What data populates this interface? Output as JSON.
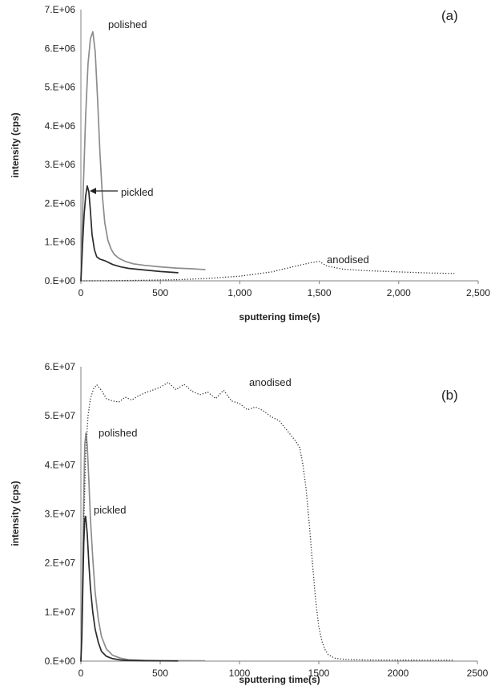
{
  "chart_data": [
    {
      "type": "line",
      "panel_label": "(a)",
      "xlabel": "sputtering time(s)",
      "ylabel": "intensity (cps)",
      "xlim": [
        0,
        2500
      ],
      "ylim": [
        0,
        7000000
      ],
      "x_ticks": [
        0,
        500,
        1000,
        1500,
        2000,
        2500
      ],
      "x_tick_labels": [
        "0",
        "500",
        "1,000",
        "1,500",
        "2,000",
        "2,500"
      ],
      "y_ticks": [
        0,
        1000000,
        2000000,
        3000000,
        4000000,
        5000000,
        6000000,
        7000000
      ],
      "y_tick_labels": [
        "0.E+00",
        "1.E+06",
        "2.E+06",
        "3.E+06",
        "4.E+06",
        "5.E+06",
        "6.E+06",
        "7.E+06"
      ],
      "grid": false,
      "series": [
        {
          "name": "polished",
          "color": "#8c8c8c",
          "style": "solid",
          "x": [
            0,
            15,
            30,
            45,
            60,
            75,
            90,
            105,
            120,
            135,
            150,
            170,
            190,
            210,
            240,
            280,
            330,
            400,
            500,
            600,
            700,
            780
          ],
          "y": [
            0,
            2400000,
            4300000,
            5600000,
            6250000,
            6430000,
            5900000,
            4700000,
            3300000,
            2200000,
            1500000,
            1050000,
            820000,
            680000,
            580000,
            500000,
            440000,
            400000,
            360000,
            330000,
            310000,
            290000
          ]
        },
        {
          "name": "pickled",
          "color": "#2b2b2b",
          "style": "solid",
          "x": [
            0,
            10,
            20,
            30,
            40,
            50,
            60,
            70,
            85,
            100,
            120,
            150,
            200,
            250,
            300,
            400,
            500,
            610
          ],
          "y": [
            0,
            900000,
            1700000,
            2200000,
            2450000,
            2300000,
            1800000,
            1200000,
            800000,
            620000,
            560000,
            520000,
            420000,
            360000,
            320000,
            280000,
            240000,
            210000
          ]
        },
        {
          "name": "anodised",
          "color": "#2b2b2b",
          "style": "dotted",
          "x": [
            0,
            200,
            400,
            600,
            800,
            1000,
            1200,
            1350,
            1450,
            1500,
            1550,
            1650,
            1800,
            2000,
            2200,
            2350
          ],
          "y": [
            0,
            5000,
            15000,
            30000,
            60000,
            120000,
            230000,
            380000,
            470000,
            500000,
            380000,
            300000,
            260000,
            230000,
            200000,
            190000
          ]
        }
      ],
      "annotations": [
        {
          "text": "polished"
        },
        {
          "text": "pickled"
        },
        {
          "text": "anodised"
        }
      ]
    },
    {
      "type": "line",
      "panel_label": "(b)",
      "xlabel": "sputtering time(s)",
      "ylabel": "intensity (cps)",
      "xlim": [
        0,
        2500
      ],
      "ylim": [
        0,
        60000000
      ],
      "x_ticks": [
        0,
        500,
        1000,
        1500,
        2000,
        2500
      ],
      "x_tick_labels": [
        "0",
        "500",
        "1000",
        "1500",
        "2000",
        "2500"
      ],
      "y_ticks": [
        0,
        10000000,
        20000000,
        30000000,
        40000000,
        50000000,
        60000000
      ],
      "y_tick_labels": [
        "0.E+00",
        "1.E+07",
        "2.E+07",
        "3.E+07",
        "4.E+07",
        "5.E+07",
        "6.E+07"
      ],
      "grid": false,
      "series": [
        {
          "name": "polished",
          "color": "#8c8c8c",
          "style": "solid",
          "x": [
            0,
            8,
            16,
            24,
            32,
            40,
            50,
            60,
            75,
            90,
            110,
            130,
            160,
            200,
            250,
            300,
            400,
            500,
            600,
            780
          ],
          "y": [
            0,
            12000000,
            30000000,
            44000000,
            46500000,
            44000000,
            37000000,
            29000000,
            21000000,
            14000000,
            8500000,
            5000000,
            2500000,
            1200000,
            600000,
            300000,
            150000,
            100000,
            80000,
            60000
          ]
        },
        {
          "name": "pickled",
          "color": "#2b2b2b",
          "style": "solid",
          "x": [
            0,
            6,
            12,
            18,
            24,
            30,
            40,
            50,
            60,
            75,
            90,
            110,
            130,
            160,
            200,
            250,
            300,
            400,
            500,
            610
          ],
          "y": [
            0,
            5000000,
            15000000,
            24000000,
            29000000,
            29500000,
            26000000,
            20000000,
            15000000,
            10000000,
            6500000,
            3800000,
            2000000,
            1000000,
            500000,
            250000,
            150000,
            80000,
            50000,
            40000
          ]
        },
        {
          "name": "anodised",
          "color": "#2b2b2b",
          "style": "dotted",
          "x": [
            0,
            10,
            20,
            30,
            45,
            60,
            80,
            100,
            130,
            160,
            200,
            240,
            280,
            320,
            360,
            400,
            450,
            500,
            550,
            600,
            650,
            700,
            750,
            800,
            850,
            900,
            950,
            1000,
            1050,
            1100,
            1150,
            1200,
            1250,
            1300,
            1350,
            1380,
            1400,
            1420,
            1440,
            1460,
            1480,
            1500,
            1520,
            1540,
            1560,
            1600,
            1650,
            1700,
            1800,
            1900,
            2000,
            2100,
            2200,
            2350
          ],
          "y": [
            0,
            12000000,
            30000000,
            42000000,
            50000000,
            53500000,
            55500000,
            56300000,
            55200000,
            53500000,
            53000000,
            52800000,
            53800000,
            53200000,
            54000000,
            54600000,
            55200000,
            55800000,
            56800000,
            55300000,
            56400000,
            55000000,
            54300000,
            54800000,
            53500000,
            55200000,
            53000000,
            52500000,
            51200000,
            51800000,
            51000000,
            49800000,
            49000000,
            47000000,
            45000000,
            43500000,
            40000000,
            35000000,
            28000000,
            20000000,
            12500000,
            7000000,
            4000000,
            2300000,
            1300000,
            600000,
            400000,
            300000,
            250000,
            220000,
            200000,
            190000,
            180000,
            180000
          ]
        }
      ],
      "annotations": [
        {
          "text": "polished"
        },
        {
          "text": "pickled"
        },
        {
          "text": "anodised"
        }
      ]
    }
  ]
}
